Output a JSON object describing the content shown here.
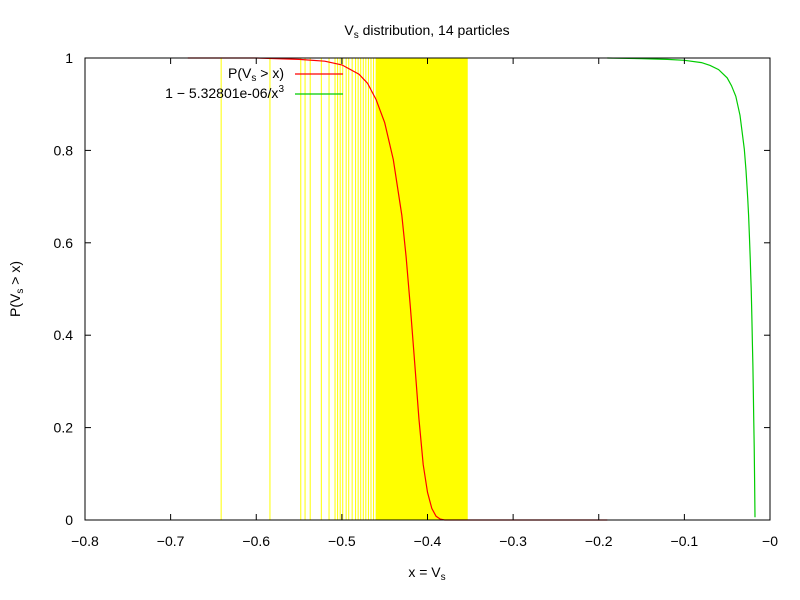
{
  "chart_data": {
    "type": "line",
    "title": {
      "prefix": "V",
      "sub": "s",
      "suffix": " distribution, 14 particles"
    },
    "xlabel": {
      "prefix": "x = V",
      "sub": "s",
      "suffix": ""
    },
    "ylabel": {
      "prefix": "P(V",
      "sub": "s",
      "suffix": " > x)"
    },
    "xlim": [
      -0.8,
      0
    ],
    "ylim": [
      0,
      1
    ],
    "xticks": [
      {
        "value": -0.8,
        "label": "−0.8"
      },
      {
        "value": -0.7,
        "label": "−0.7"
      },
      {
        "value": -0.6,
        "label": "−0.6"
      },
      {
        "value": -0.5,
        "label": "−0.5"
      },
      {
        "value": -0.4,
        "label": "−0.4"
      },
      {
        "value": -0.3,
        "label": "−0.3"
      },
      {
        "value": -0.2,
        "label": "−0.2"
      },
      {
        "value": -0.1,
        "label": "−0.1"
      },
      {
        "value": 0,
        "label": "−0"
      }
    ],
    "yticks": [
      {
        "value": 0,
        "label": "0"
      },
      {
        "value": 0.2,
        "label": "0.2"
      },
      {
        "value": 0.4,
        "label": "0.4"
      },
      {
        "value": 0.6,
        "label": "0.6"
      },
      {
        "value": 0.8,
        "label": "0.8"
      },
      {
        "value": 1,
        "label": "1"
      }
    ],
    "legend_position": "top-left",
    "series": [
      {
        "name": {
          "prefix": "P(V",
          "sub": "s",
          "suffix": " > x)"
        },
        "color": "#ff0000",
        "points": [
          [
            -0.68,
            1.0
          ],
          [
            -0.6,
            1.0
          ],
          [
            -0.55,
            0.997
          ],
          [
            -0.52,
            0.993
          ],
          [
            -0.5,
            0.985
          ],
          [
            -0.48,
            0.965
          ],
          [
            -0.47,
            0.945
          ],
          [
            -0.46,
            0.91
          ],
          [
            -0.45,
            0.86
          ],
          [
            -0.44,
            0.78
          ],
          [
            -0.43,
            0.66
          ],
          [
            -0.425,
            0.57
          ],
          [
            -0.42,
            0.46
          ],
          [
            -0.415,
            0.34
          ],
          [
            -0.41,
            0.22
          ],
          [
            -0.405,
            0.12
          ],
          [
            -0.4,
            0.06
          ],
          [
            -0.395,
            0.025
          ],
          [
            -0.39,
            0.008
          ],
          [
            -0.385,
            0.002
          ],
          [
            -0.38,
            0.0
          ],
          [
            -0.37,
            0.0
          ],
          [
            -0.25,
            0.0
          ],
          [
            -0.19,
            0.0
          ]
        ]
      },
      {
        "name": {
          "prefix": "1 − 5.32801e-06/x",
          "sup": "3",
          "suffix": ""
        },
        "color": "#00cc00",
        "points": [
          [
            -0.19,
            1.0
          ],
          [
            -0.15,
            0.9985
          ],
          [
            -0.12,
            0.997
          ],
          [
            -0.1,
            0.995
          ],
          [
            -0.08,
            0.99
          ],
          [
            -0.07,
            0.984
          ],
          [
            -0.06,
            0.975
          ],
          [
            -0.05,
            0.957
          ],
          [
            -0.045,
            0.94
          ],
          [
            -0.04,
            0.917
          ],
          [
            -0.035,
            0.876
          ],
          [
            -0.03,
            0.803
          ],
          [
            -0.028,
            0.757
          ],
          [
            -0.026,
            0.697
          ],
          [
            -0.025,
            0.659
          ],
          [
            -0.024,
            0.615
          ],
          [
            -0.023,
            0.562
          ],
          [
            -0.0225,
            0.532
          ],
          [
            -0.022,
            0.5
          ],
          [
            -0.0215,
            0.464
          ],
          [
            -0.021,
            0.425
          ],
          [
            -0.0205,
            0.382
          ],
          [
            -0.02,
            0.334
          ],
          [
            -0.0195,
            0.281
          ],
          [
            -0.019,
            0.223
          ],
          [
            -0.0185,
            0.159
          ],
          [
            -0.018,
            0.086
          ],
          [
            -0.0175,
            0.006
          ]
        ]
      }
    ],
    "sample_lines": {
      "color": "#ffff00",
      "values": [
        -0.641,
        -0.584,
        -0.548,
        -0.543,
        -0.537,
        -0.524,
        -0.515,
        -0.508,
        -0.505,
        -0.502,
        -0.499,
        -0.495,
        -0.492,
        -0.488,
        -0.484,
        -0.481,
        -0.478,
        -0.475,
        -0.472,
        -0.469,
        -0.466,
        -0.463,
        -0.46
      ],
      "band": [
        -0.46,
        -0.353
      ]
    }
  }
}
